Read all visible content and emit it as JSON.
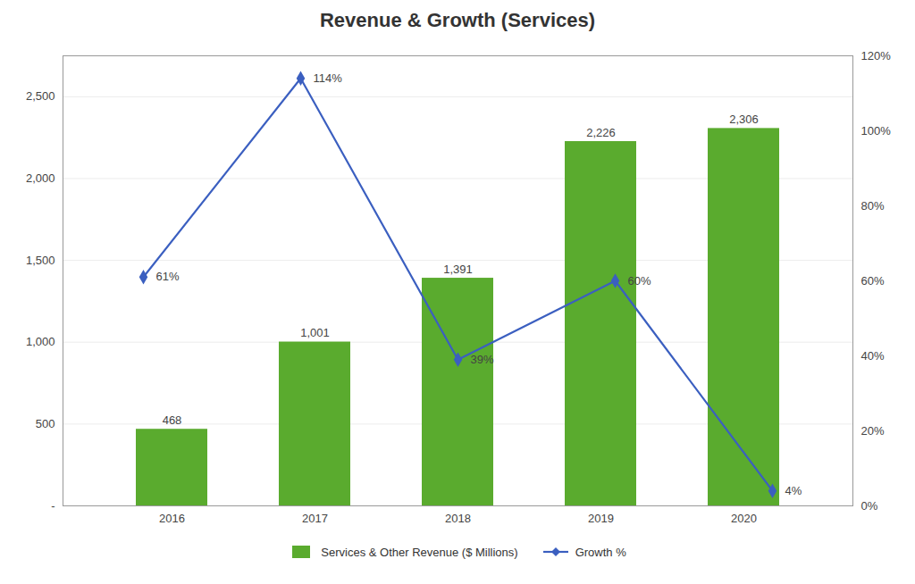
{
  "chart_data": {
    "type": "bar",
    "title": "Revenue & Growth (Services)",
    "categories": [
      "2016",
      "2017",
      "2018",
      "2019",
      "2020"
    ],
    "series": [
      {
        "name": "Services & Other Revenue ($ Millions)",
        "type": "bar",
        "color": "#5aab2e",
        "values": [
          468,
          1001,
          1391,
          2226,
          2306
        ],
        "value_labels": [
          "468",
          "1,001",
          "1,391",
          "2,226",
          "2,306"
        ]
      },
      {
        "name": "Growth %",
        "type": "line",
        "axis": "y2",
        "color": "#3b5fc0",
        "marker": "diamond",
        "values": [
          0.61,
          1.14,
          0.39,
          0.6,
          0.04
        ],
        "value_labels": [
          "61%",
          "114%",
          "39%",
          "60%",
          "4%"
        ]
      }
    ],
    "ylim": [
      0,
      2750
    ],
    "yticks": [
      {
        "value": 0,
        "label": "-"
      },
      500,
      {
        "value": 1000,
        "label": "1,000"
      },
      {
        "value": 1500,
        "label": "1,500"
      },
      {
        "value": 2000,
        "label": "2,000"
      },
      {
        "value": 2500,
        "label": "2,500"
      }
    ],
    "y2lim": [
      0,
      1.2
    ],
    "y2ticks": [
      {
        "value": 0.0,
        "label": "0%"
      },
      {
        "value": 0.2,
        "label": "20%"
      },
      {
        "value": 0.4,
        "label": "40%"
      },
      {
        "value": 0.6,
        "label": "60%"
      },
      {
        "value": 0.8,
        "label": "80%"
      },
      {
        "value": 1.0,
        "label": "100%"
      },
      {
        "value": 1.2,
        "label": "120%"
      }
    ],
    "grid": true,
    "legend": "bottom",
    "data_labels": true
  }
}
